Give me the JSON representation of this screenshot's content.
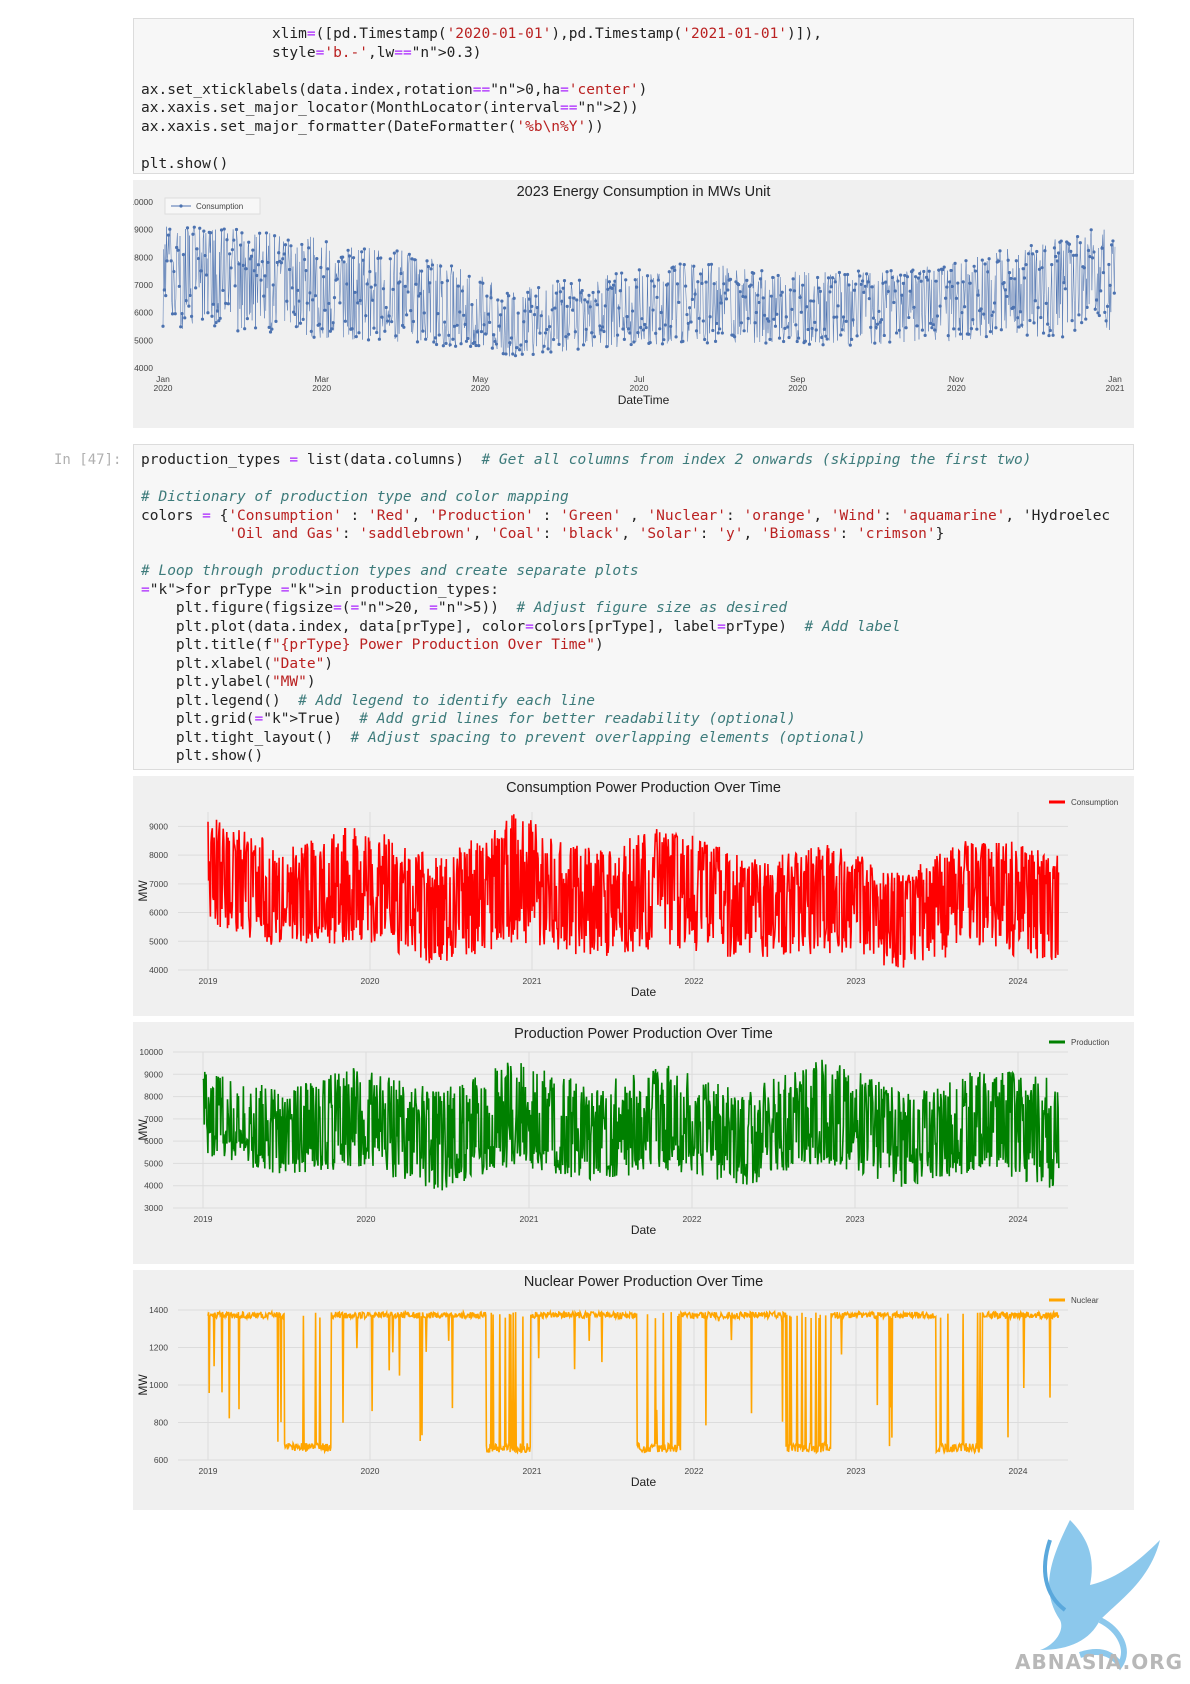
{
  "cells": {
    "cell1_code": [
      "               xlim=([pd.Timestamp('2020-01-01'),pd.Timestamp('2021-01-01')]),",
      "               style='b.-',lw=0.3)",
      "",
      "ax.set_xticklabels(data.index,rotation=0,ha='center')",
      "ax.xaxis.set_major_locator(MonthLocator(interval=2))",
      "ax.xaxis.set_major_formatter(DateFormatter('%b\\n%Y'))",
      "",
      "plt.show()"
    ],
    "cell2_prompt": "In [47]:",
    "cell2_code": [
      "production_types = list(data.columns)  # Get all columns from index 2 onwards (skipping the first two)",
      "",
      "# Dictionary of production type and color mapping",
      "colors = {'Consumption' : 'Red', 'Production' : 'Green' , 'Nuclear': 'orange', 'Wind': 'aquamarine', 'Hydroelec",
      "          'Oil and Gas': 'saddlebrown', 'Coal': 'black', 'Solar': 'y', 'Biomass': 'crimson'}",
      "",
      "# Loop through production types and create separate plots",
      "for prType in production_types:",
      "    plt.figure(figsize=(20, 5))  # Adjust figure size as desired",
      "    plt.plot(data.index, data[prType], color=colors[prType], label=prType)  # Add label",
      "    plt.title(f\"{prType} Power Production Over Time\")",
      "    plt.xlabel(\"Date\")",
      "    plt.ylabel(\"MW\")",
      "    plt.legend()  # Add legend to identify each line",
      "    plt.grid(True)  # Add grid lines for better readability (optional)",
      "    plt.tight_layout()  # Adjust spacing to prevent overlapping elements (optional)",
      "    plt.show()"
    ]
  },
  "chart_data": [
    {
      "type": "line",
      "title": "2023 Energy Consumption in MWs Unit",
      "xlabel": "DateTime",
      "ylabel": "",
      "ylim": [
        4000,
        10000
      ],
      "yticks": [
        "4000",
        "5000",
        "6000",
        "7000",
        "8000",
        "9000",
        "10000"
      ],
      "xticks": [
        [
          "Jan",
          "2020"
        ],
        [
          "Mar",
          "2020"
        ],
        [
          "May",
          "2020"
        ],
        [
          "Jul",
          "2020"
        ],
        [
          "Sep",
          "2020"
        ],
        [
          "Nov",
          "2020"
        ],
        [
          "Jan",
          "2021"
        ]
      ],
      "xlim": [
        "2020-01-01",
        "2021-01-01"
      ],
      "grid": false,
      "legend_position": "top-left",
      "series": [
        {
          "name": "Consumption",
          "color": "#4c72b0",
          "style": "b.-",
          "x": [
            "2020-01",
            "2020-02",
            "2020-03",
            "2020-04",
            "2020-05",
            "2020-06",
            "2020-07",
            "2020-08",
            "2020-09",
            "2020-10",
            "2020-11",
            "2020-12"
          ],
          "values": [
            7300,
            7200,
            6800,
            6200,
            5400,
            5700,
            6300,
            6300,
            6200,
            6400,
            6900,
            7400
          ],
          "range_low": [
            5400,
            5300,
            5000,
            4900,
            4400,
            4700,
            4900,
            4900,
            4800,
            4900,
            5000,
            5300
          ],
          "range_high": [
            9200,
            9000,
            8700,
            8100,
            7000,
            7300,
            7900,
            7500,
            7500,
            7700,
            8500,
            9300
          ]
        }
      ]
    },
    {
      "type": "line",
      "title": "Consumption Power Production Over Time",
      "xlabel": "Date",
      "ylabel": "MW",
      "ylim": [
        4000,
        9500
      ],
      "yticks": [
        "4000",
        "5000",
        "6000",
        "7000",
        "8000",
        "9000"
      ],
      "xticks": [
        "2019",
        "2020",
        "2021",
        "2022",
        "2023",
        "2024"
      ],
      "grid": true,
      "legend_position": "top-right",
      "series": [
        {
          "name": "Consumption",
          "color": "#ff0000",
          "x": [
            "2019-01",
            "2019-07",
            "2020-01",
            "2020-07",
            "2021-01",
            "2021-07",
            "2022-01",
            "2022-07",
            "2023-01",
            "2023-07",
            "2024-01",
            "2024-04"
          ],
          "values": [
            7400,
            6400,
            7300,
            6000,
            7400,
            6200,
            7100,
            6000,
            6800,
            5900,
            7200,
            6600
          ],
          "range_low": [
            5400,
            4600,
            5000,
            4100,
            5000,
            4400,
            4800,
            4300,
            4600,
            4000,
            4800,
            4100
          ],
          "range_high": [
            9400,
            8300,
            9100,
            7900,
            9500,
            8200,
            9100,
            7800,
            8500,
            7400,
            8800,
            8000
          ]
        }
      ]
    },
    {
      "type": "line",
      "title": "Production Power Production Over Time",
      "xlabel": "Date",
      "ylabel": "MW",
      "ylim": [
        3000,
        10000
      ],
      "yticks": [
        "3000",
        "4000",
        "5000",
        "6000",
        "7000",
        "8000",
        "9000",
        "10000"
      ],
      "xticks": [
        "2019",
        "2020",
        "2021",
        "2022",
        "2023",
        "2024"
      ],
      "grid": true,
      "legend_position": "top-right",
      "series": [
        {
          "name": "Production",
          "color": "#008000",
          "x": [
            "2019-01",
            "2019-07",
            "2020-01",
            "2020-07",
            "2021-01",
            "2021-07",
            "2022-01",
            "2022-07",
            "2023-01",
            "2023-07",
            "2024-01",
            "2024-04"
          ],
          "values": [
            7000,
            6200,
            7000,
            5800,
            7300,
            6100,
            6900,
            5700,
            7200,
            5900,
            7000,
            6400
          ],
          "range_low": [
            5300,
            4500,
            4800,
            3700,
            4900,
            4200,
            4700,
            4000,
            5000,
            3900,
            4700,
            3800
          ],
          "range_high": [
            9200,
            8300,
            9400,
            8300,
            9700,
            8600,
            9400,
            8300,
            9800,
            8200,
            9300,
            8800
          ]
        }
      ]
    },
    {
      "type": "line",
      "title": "Nuclear Power Production Over Time",
      "xlabel": "Date",
      "ylabel": "MW",
      "ylim": [
        600,
        1400
      ],
      "yticks": [
        "600",
        "800",
        "1000",
        "1200",
        "1400"
      ],
      "xticks": [
        "2019",
        "2020",
        "2021",
        "2022",
        "2023",
        "2024"
      ],
      "grid": true,
      "legend_position": "top-right",
      "series": [
        {
          "name": "Nuclear",
          "color": "#ffa500",
          "x": [
            "2019-01",
            "2019-04",
            "2019-06",
            "2019-09",
            "2020-01",
            "2020-06",
            "2020-09",
            "2021-01",
            "2021-06",
            "2021-09",
            "2022-01",
            "2022-06",
            "2022-09",
            "2023-01",
            "2023-06",
            "2023-09",
            "2024-01",
            "2024-04"
          ],
          "values": [
            1390,
            1380,
            660,
            1400,
            1410,
            1420,
            670,
            1400,
            1410,
            690,
            1390,
            1400,
            680,
            1390,
            1410,
            660,
            1380,
            1390
          ],
          "baseline": 1390
        }
      ]
    }
  ],
  "watermark": {
    "text": "ABNASIA.ORG",
    "logo_icon": "griffin-logo-icon"
  }
}
